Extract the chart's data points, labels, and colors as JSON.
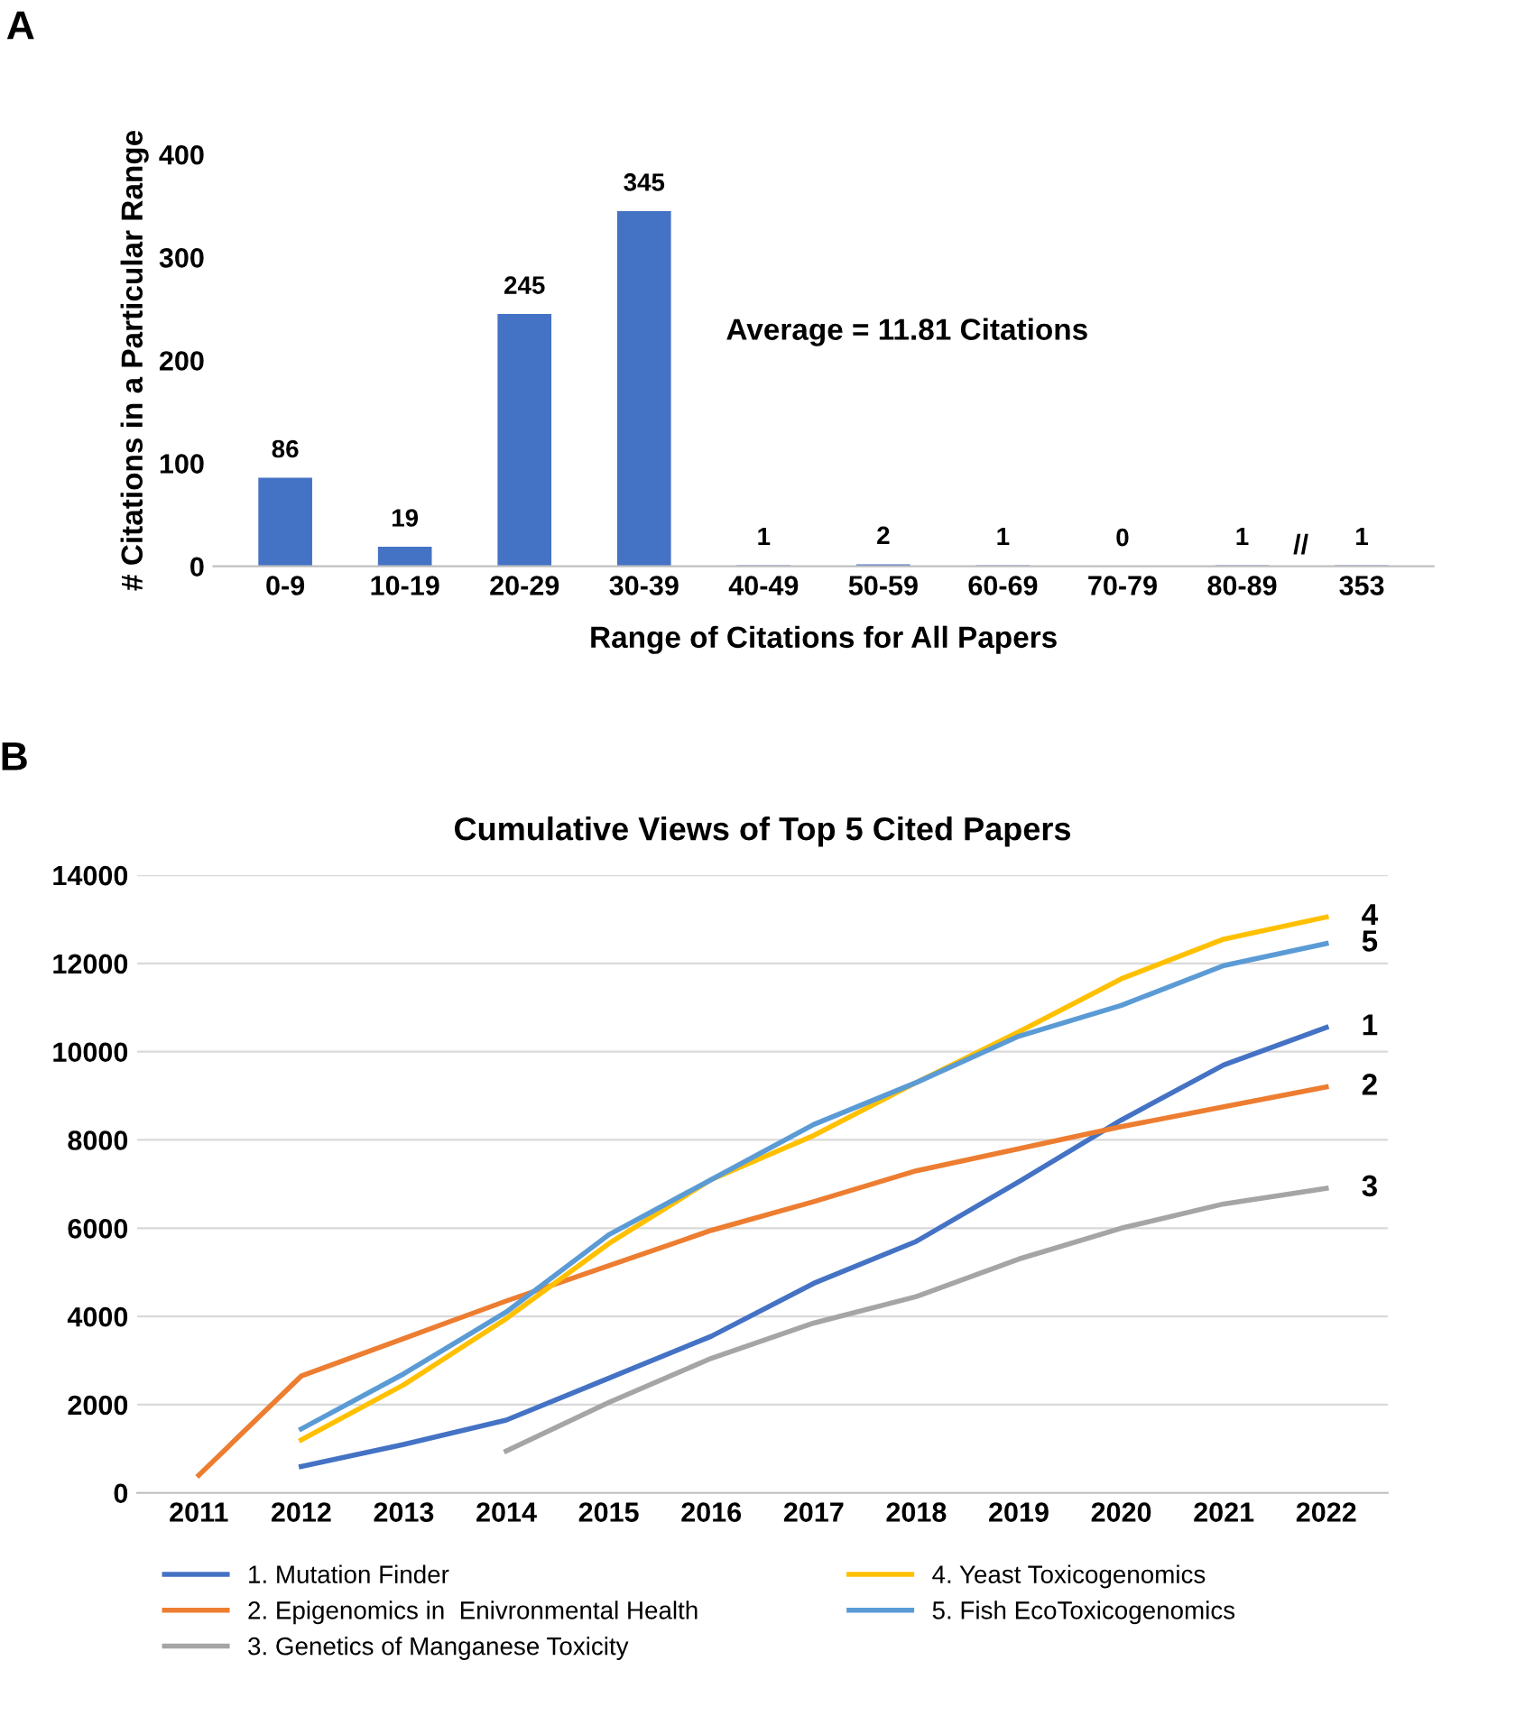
{
  "chart_data": [
    {
      "type": "bar",
      "xlabel": "Range of Citations for All Papers",
      "ylabel": "# Citations in a Particular Range",
      "categories": [
        "0-9",
        "10-19",
        "20-29",
        "30-39",
        "40-49",
        "50-59",
        "60-69",
        "70-79",
        "80-89",
        "353"
      ],
      "values": [
        86,
        19,
        245,
        345,
        1,
        2,
        1,
        0,
        1,
        1
      ],
      "color": "#4472c4",
      "data_labels": true,
      "ylim": [
        0,
        400
      ],
      "yticks": [
        0,
        100,
        200,
        300,
        400
      ],
      "grid": false,
      "legend": false,
      "annotations": [
        "A",
        "Average = 11.81 Citations",
        "//"
      ]
    },
    {
      "type": "line",
      "title": "Cumulative Views of Top 5 Cited Papers",
      "categories": [
        "2011",
        "2012",
        "2013",
        "2014",
        "2015",
        "2016",
        "2017",
        "2018",
        "2019",
        "2020",
        "2021",
        "2022"
      ],
      "series": [
        {
          "name": "1. Mutation Finder",
          "color": "#4472c4",
          "values": [
            null,
            600,
            1100,
            1650,
            2600,
            3550,
            4750,
            5700,
            7050,
            8450,
            9700,
            10550
          ]
        },
        {
          "name": "2. Epigenomics in  Enivronmental Health",
          "color": "#ed7d31",
          "values": [
            400,
            2650,
            3500,
            4350,
            5150,
            5950,
            6600,
            7300,
            7800,
            8300,
            8750,
            9200
          ]
        },
        {
          "name": "3. Genetics of Manganese Toxicity",
          "color": "#a5a5a5",
          "values": [
            null,
            null,
            null,
            950,
            2050,
            3050,
            3850,
            4450,
            5300,
            6000,
            6550,
            6900
          ]
        },
        {
          "name": "4. Yeast Toxicogenomics",
          "color": "#ffc000",
          "values": [
            null,
            1200,
            2450,
            3950,
            5650,
            7100,
            8100,
            9300,
            10450,
            11650,
            12550,
            13050
          ]
        },
        {
          "name": "5. Fish EcoToxicogenomics",
          "color": "#5b9bd5",
          "values": [
            null,
            1450,
            2700,
            4100,
            5850,
            7100,
            8350,
            9300,
            10350,
            11050,
            11950,
            12450
          ]
        }
      ],
      "ylim": [
        0,
        14000
      ],
      "yticks": [
        0,
        2000,
        4000,
        6000,
        8000,
        10000,
        12000,
        14000
      ],
      "grid": "y",
      "legend": "bottom",
      "marker": "none",
      "line_style": "solid",
      "annotations": [
        "B",
        {
          "text": "4",
          "x": "2022",
          "y": 13050
        },
        {
          "text": "5",
          "x": "2022",
          "y": 12450
        },
        {
          "text": "1",
          "x": "2022",
          "y": 10550
        },
        {
          "text": "2",
          "x": "2022",
          "y": 9200
        },
        {
          "text": "3",
          "x": "2022",
          "y": 6900
        }
      ]
    }
  ]
}
